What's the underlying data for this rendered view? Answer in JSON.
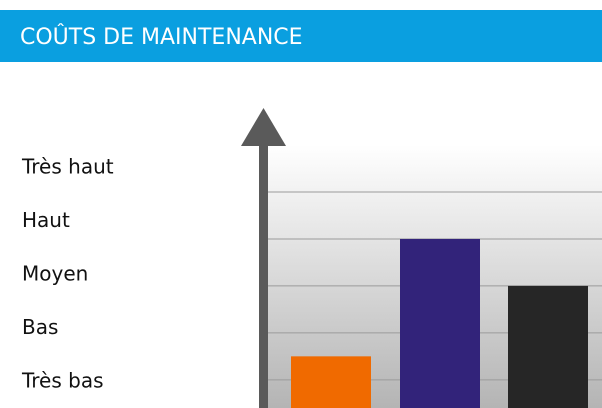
{
  "chart_data": {
    "type": "bar",
    "title": "COÛTS DE MAINTENANCE",
    "values": [
      1.5,
      4,
      3
    ],
    "colors": [
      "#f06a00",
      "#32237a",
      "#262626"
    ],
    "ylim": [
      0.4,
      5
    ],
    "yticks": [
      {
        "value": 1,
        "label": "Très bas"
      },
      {
        "value": 2,
        "label": "Bas"
      },
      {
        "value": 3,
        "label": "Moyen"
      },
      {
        "value": 4,
        "label": "Haut"
      },
      {
        "value": 5,
        "label": "Très haut"
      }
    ],
    "grid": true
  }
}
